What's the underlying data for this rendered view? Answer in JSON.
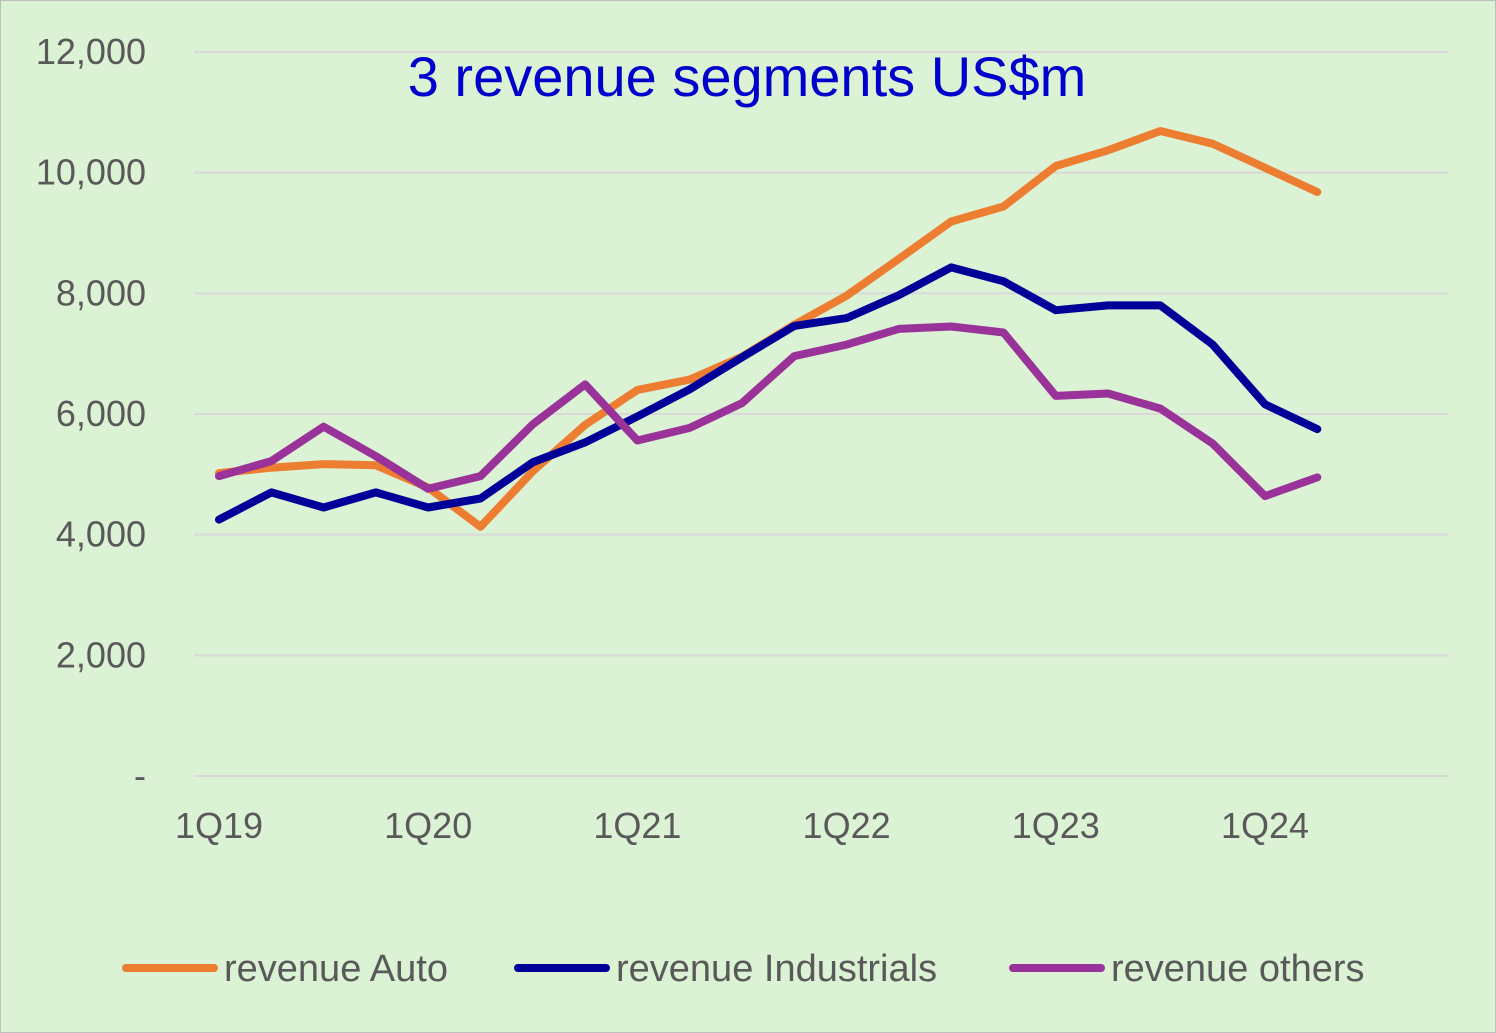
{
  "chart_data": {
    "type": "line",
    "title": "3 revenue segments US$m",
    "xlabel": "",
    "ylabel": "",
    "ylim": [
      0,
      12000
    ],
    "yticks": [
      {
        "value": 0,
        "label": "-"
      },
      {
        "value": 2000,
        "label": "2,000"
      },
      {
        "value": 4000,
        "label": "4,000"
      },
      {
        "value": 6000,
        "label": "6,000"
      },
      {
        "value": 8000,
        "label": "8,000"
      },
      {
        "value": 10000,
        "label": "10,000"
      },
      {
        "value": 12000,
        "label": "12,000"
      }
    ],
    "categories": [
      "1Q19",
      "2Q19",
      "3Q19",
      "4Q19",
      "1Q20",
      "2Q20",
      "3Q20",
      "4Q20",
      "1Q21",
      "2Q21",
      "3Q21",
      "4Q21",
      "1Q22",
      "2Q22",
      "3Q22",
      "4Q22",
      "1Q23",
      "2Q23",
      "3Q23",
      "4Q23",
      "1Q24",
      "2Q24"
    ],
    "xtick_labels": [
      "1Q19",
      "1Q20",
      "1Q21",
      "1Q22",
      "1Q23",
      "1Q24"
    ],
    "grid": true,
    "legend_position": "bottom",
    "series": [
      {
        "name": "revenue Auto",
        "color": "#ed7d31",
        "values": [
          5020,
          5110,
          5170,
          5150,
          4780,
          4130,
          5050,
          5820,
          6400,
          6570,
          6950,
          7480,
          7960,
          8570,
          9190,
          9440,
          10110,
          10370,
          10690,
          10480,
          10080,
          9680
        ]
      },
      {
        "name": "revenue Industrials",
        "color": "#000099",
        "values": [
          4250,
          4700,
          4450,
          4700,
          4450,
          4600,
          5200,
          5530,
          5960,
          6410,
          6940,
          7460,
          7590,
          7970,
          8430,
          8200,
          7720,
          7800,
          7800,
          7150,
          6160,
          5750
        ]
      },
      {
        "name": "revenue others",
        "color": "#993399",
        "values": [
          4970,
          5220,
          5790,
          5300,
          4760,
          4970,
          5830,
          6490,
          5560,
          5770,
          6180,
          6960,
          7150,
          7410,
          7450,
          7350,
          6300,
          6340,
          6090,
          5510,
          4640,
          4950
        ]
      }
    ]
  }
}
